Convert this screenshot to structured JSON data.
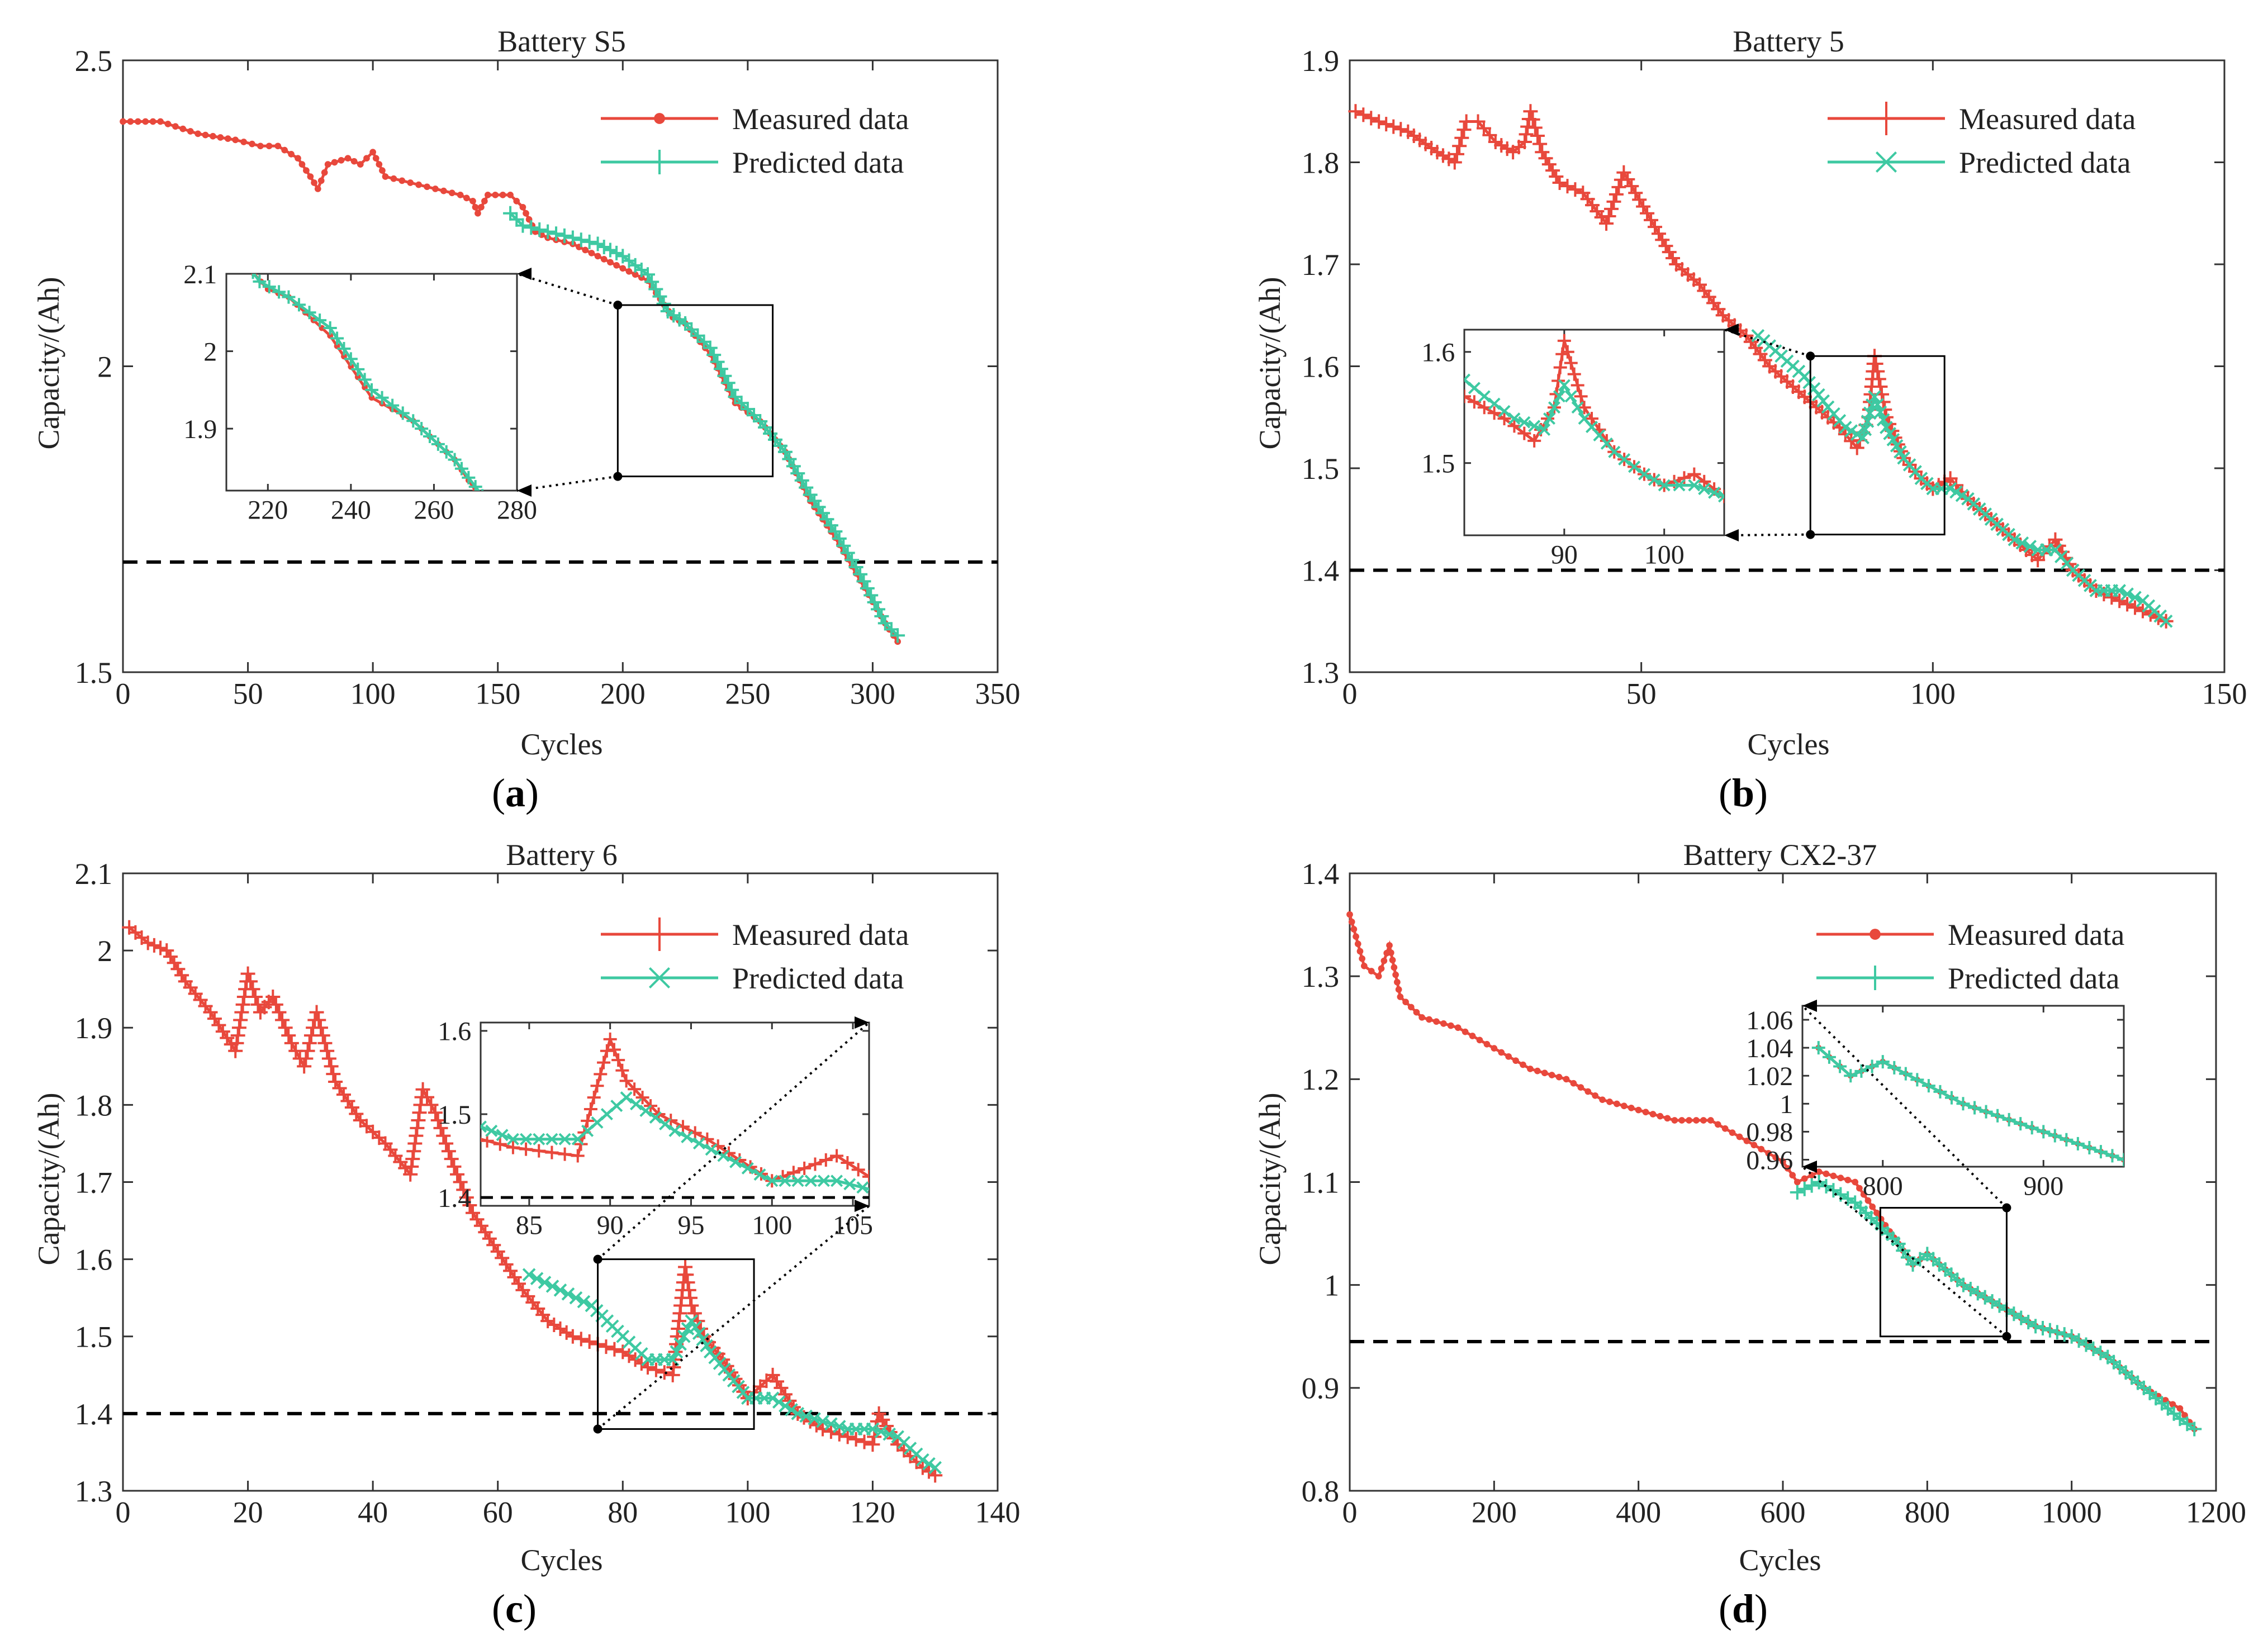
{
  "colors": {
    "measured": "#e8483c",
    "predicted": "#3ec9a2",
    "axis": "#333333",
    "threshold": "#000000"
  },
  "chart_data": [
    {
      "type": "line",
      "panel_label": "a",
      "title": "Battery S5",
      "xlabel": "Cycles",
      "ylabel": "Capacity/(Ah)",
      "xlim": [
        0,
        350
      ],
      "ylim": [
        1.5,
        2.5
      ],
      "xticks": [
        0,
        50,
        100,
        150,
        200,
        250,
        300,
        350
      ],
      "yticks": [
        1.5,
        2,
        2.5
      ],
      "legend": {
        "position": "top-right",
        "entries": [
          "Measured data",
          "Predicted data"
        ],
        "markers": [
          "dot",
          "plus"
        ]
      },
      "threshold": 1.68,
      "series": [
        {
          "name": "Measured data",
          "marker": "dot",
          "x": [
            0,
            15,
            30,
            45,
            55,
            62,
            70,
            75,
            78,
            82,
            90,
            95,
            100,
            105,
            115,
            125,
            135,
            140,
            142,
            146,
            155,
            160,
            165,
            170,
            180,
            190,
            200,
            210,
            215,
            220,
            225,
            235,
            245,
            255,
            265,
            275,
            285,
            295,
            305,
            310
          ],
          "y": [
            2.4,
            2.4,
            2.38,
            2.37,
            2.36,
            2.36,
            2.34,
            2.31,
            2.29,
            2.33,
            2.34,
            2.33,
            2.35,
            2.31,
            2.3,
            2.29,
            2.28,
            2.27,
            2.25,
            2.28,
            2.28,
            2.26,
            2.22,
            2.21,
            2.2,
            2.18,
            2.16,
            2.14,
            2.11,
            2.08,
            2.07,
            2.02,
            1.94,
            1.91,
            1.86,
            1.78,
            1.72,
            1.65,
            1.58,
            1.55
          ]
        },
        {
          "name": "Predicted data",
          "marker": "plus",
          "x": [
            155,
            160,
            170,
            180,
            190,
            200,
            210,
            218,
            225,
            235,
            245,
            255,
            265,
            275,
            285,
            295,
            305,
            310
          ],
          "y": [
            2.25,
            2.23,
            2.22,
            2.21,
            2.2,
            2.18,
            2.15,
            2.09,
            2.07,
            2.03,
            1.95,
            1.91,
            1.86,
            1.79,
            1.73,
            1.66,
            1.58,
            1.56
          ]
        }
      ],
      "inset": {
        "xlim": [
          210,
          280
        ],
        "ylim": [
          1.82,
          2.1
        ],
        "xticks": [
          220,
          240,
          260,
          280
        ],
        "yticks": [
          1.9,
          2,
          2.1
        ],
        "zoom_box": {
          "x": [
            198,
            260
          ],
          "y": [
            1.82,
            2.1
          ]
        }
      }
    },
    {
      "type": "line",
      "panel_label": "b",
      "title": "Battery 5",
      "xlabel": "Cycles",
      "ylabel": "Capacity/(Ah)",
      "xlim": [
        0,
        150
      ],
      "ylim": [
        1.3,
        1.9
      ],
      "xticks": [
        0,
        50,
        100,
        150
      ],
      "yticks": [
        1.3,
        1.4,
        1.5,
        1.6,
        1.7,
        1.8,
        1.9
      ],
      "legend": {
        "position": "top-right",
        "entries": [
          "Measured data",
          "Predicted data"
        ],
        "markers": [
          "plus",
          "x"
        ]
      },
      "threshold": 1.4,
      "series": [
        {
          "name": "Measured data",
          "marker": "plus",
          "x": [
            1,
            5,
            10,
            15,
            18,
            20,
            22,
            25,
            28,
            30,
            31,
            33,
            36,
            40,
            44,
            47,
            49,
            51,
            53,
            56,
            60,
            64,
            68,
            72,
            76,
            80,
            84,
            87,
            89,
            90,
            92,
            95,
            98,
            100,
            103,
            106,
            110,
            114,
            118,
            121,
            124,
            128,
            132,
            136,
            140
          ],
          "y": [
            1.85,
            1.84,
            1.83,
            1.81,
            1.8,
            1.84,
            1.84,
            1.82,
            1.81,
            1.82,
            1.85,
            1.81,
            1.78,
            1.77,
            1.74,
            1.79,
            1.77,
            1.75,
            1.73,
            1.7,
            1.68,
            1.65,
            1.63,
            1.6,
            1.58,
            1.56,
            1.54,
            1.52,
            1.55,
            1.61,
            1.55,
            1.51,
            1.49,
            1.48,
            1.49,
            1.47,
            1.45,
            1.43,
            1.41,
            1.43,
            1.4,
            1.38,
            1.37,
            1.36,
            1.35
          ]
        },
        {
          "name": "Predicted data",
          "marker": "x",
          "x": [
            70,
            74,
            78,
            82,
            85,
            88,
            90,
            92,
            95,
            98,
            100,
            103,
            106,
            110,
            114,
            118,
            121,
            124,
            128,
            132,
            136,
            140
          ],
          "y": [
            1.63,
            1.61,
            1.59,
            1.56,
            1.54,
            1.53,
            1.57,
            1.54,
            1.51,
            1.49,
            1.48,
            1.48,
            1.47,
            1.45,
            1.43,
            1.42,
            1.42,
            1.4,
            1.38,
            1.38,
            1.37,
            1.35
          ]
        }
      ],
      "inset": {
        "xlim": [
          80,
          106
        ],
        "ylim": [
          1.435,
          1.62
        ],
        "xticks": [
          90,
          100
        ],
        "yticks": [
          1.5,
          1.6
        ],
        "zoom_box": {
          "x": [
            79,
            102
          ],
          "y": [
            1.435,
            1.61
          ]
        }
      }
    },
    {
      "type": "line",
      "panel_label": "c",
      "title": "Battery 6",
      "xlabel": "Cycles",
      "ylabel": "Capacity/(Ah)",
      "xlim": [
        0,
        140
      ],
      "ylim": [
        1.3,
        2.1
      ],
      "xticks": [
        0,
        20,
        40,
        60,
        80,
        100,
        120,
        140
      ],
      "yticks": [
        1.3,
        1.4,
        1.5,
        1.6,
        1.7,
        1.8,
        1.9,
        2,
        2.1
      ],
      "legend": {
        "position": "top-right",
        "entries": [
          "Measured data",
          "Predicted data"
        ],
        "markers": [
          "plus",
          "x"
        ]
      },
      "threshold": 1.4,
      "series": [
        {
          "name": "Measured data",
          "marker": "plus",
          "x": [
            1,
            4,
            7,
            10,
            14,
            18,
            20,
            22,
            24,
            27,
            29,
            31,
            34,
            38,
            42,
            46,
            48,
            50,
            53,
            56,
            60,
            64,
            68,
            72,
            76,
            80,
            84,
            88,
            90,
            91,
            93,
            96,
            100,
            104,
            108,
            112,
            116,
            120,
            121,
            124,
            128,
            130
          ],
          "y": [
            2.03,
            2.01,
            2.0,
            1.96,
            1.92,
            1.87,
            1.97,
            1.92,
            1.94,
            1.88,
            1.85,
            1.92,
            1.83,
            1.78,
            1.75,
            1.71,
            1.82,
            1.79,
            1.72,
            1.66,
            1.61,
            1.56,
            1.52,
            1.5,
            1.49,
            1.48,
            1.46,
            1.45,
            1.59,
            1.54,
            1.5,
            1.47,
            1.42,
            1.45,
            1.4,
            1.38,
            1.37,
            1.36,
            1.4,
            1.36,
            1.33,
            1.32
          ]
        },
        {
          "name": "Predicted data",
          "marker": "x",
          "x": [
            65,
            70,
            75,
            80,
            84,
            88,
            91,
            94,
            97,
            100,
            104,
            108,
            112,
            116,
            120,
            124,
            128,
            130
          ],
          "y": [
            1.58,
            1.56,
            1.54,
            1.5,
            1.47,
            1.47,
            1.52,
            1.48,
            1.45,
            1.42,
            1.42,
            1.4,
            1.39,
            1.38,
            1.38,
            1.37,
            1.34,
            1.33
          ]
        }
      ],
      "inset": {
        "xlim": [
          82,
          106
        ],
        "ylim": [
          1.39,
          1.61
        ],
        "xticks": [
          85,
          90,
          95,
          100,
          105
        ],
        "yticks": [
          1.4,
          1.5,
          1.6
        ],
        "zoom_box": {
          "x": [
            76,
            101
          ],
          "y": [
            1.38,
            1.6
          ]
        }
      }
    },
    {
      "type": "line",
      "panel_label": "d",
      "title": "Battery CX2-37",
      "xlabel": "Cycles",
      "ylabel": "Capacity/(Ah)",
      "xlim": [
        0,
        1200
      ],
      "ylim": [
        0.8,
        1.4
      ],
      "xticks": [
        0,
        200,
        400,
        600,
        800,
        1000,
        1200
      ],
      "yticks": [
        0.8,
        0.9,
        1,
        1.1,
        1.2,
        1.3,
        1.4
      ],
      "legend": {
        "position": "top-right",
        "entries": [
          "Measured data",
          "Predicted data"
        ],
        "markers": [
          "dot",
          "plus"
        ]
      },
      "threshold": 0.945,
      "series": [
        {
          "name": "Measured data",
          "marker": "dot",
          "x": [
            0,
            20,
            40,
            55,
            70,
            100,
            150,
            200,
            250,
            300,
            350,
            400,
            450,
            500,
            550,
            600,
            620,
            650,
            700,
            730,
            760,
            780,
            800,
            850,
            900,
            950,
            1000,
            1050,
            1100,
            1150,
            1170
          ],
          "y": [
            1.36,
            1.31,
            1.3,
            1.33,
            1.28,
            1.26,
            1.25,
            1.23,
            1.21,
            1.2,
            1.18,
            1.17,
            1.16,
            1.16,
            1.14,
            1.12,
            1.1,
            1.11,
            1.1,
            1.07,
            1.04,
            1.02,
            1.03,
            1.0,
            0.98,
            0.96,
            0.95,
            0.93,
            0.9,
            0.88,
            0.86
          ]
        },
        {
          "name": "Predicted data",
          "marker": "plus",
          "x": [
            620,
            650,
            700,
            730,
            760,
            780,
            800,
            850,
            900,
            950,
            1000,
            1050,
            1100,
            1150,
            1170
          ],
          "y": [
            1.09,
            1.1,
            1.08,
            1.06,
            1.04,
            1.02,
            1.03,
            1.0,
            0.98,
            0.96,
            0.95,
            0.93,
            0.9,
            0.87,
            0.86
          ]
        }
      ],
      "inset": {
        "xlim": [
          750,
          950
        ],
        "ylim": [
          0.955,
          1.07
        ],
        "xticks": [
          800,
          900
        ],
        "yticks": [
          0.96,
          0.98,
          1,
          1.02,
          1.04,
          1.06
        ],
        "zoom_box": {
          "x": [
            735,
            910
          ],
          "y": [
            0.95,
            1.075
          ]
        }
      }
    }
  ]
}
